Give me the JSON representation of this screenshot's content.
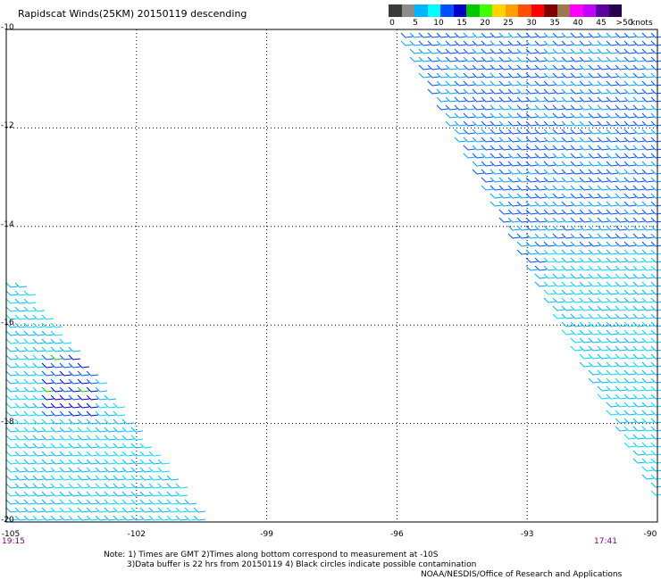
{
  "title": "Rapidscat Winds(25KM) 20150119 descending",
  "colorbar": {
    "colors": [
      "#3a3a3a",
      "#8c8c8c",
      "#00b4ff",
      "#00ffff",
      "#0050ff",
      "#0000c8",
      "#00c800",
      "#40ff00",
      "#ffd200",
      "#ffa000",
      "#ff5000",
      "#ff0000",
      "#800000",
      "#a07850",
      "#ff00ff",
      "#c000ff",
      "#5a00a0",
      "#280050"
    ],
    "labels": [
      "0",
      "5",
      "10",
      "15",
      "20",
      "25",
      "30",
      "35",
      "40",
      "45",
      ">50"
    ],
    "units": "knots"
  },
  "axes": {
    "lat_labels": [
      "-10",
      "-12",
      "-14",
      "-16",
      "-18",
      "-20"
    ],
    "lat_values": [
      -10,
      -12,
      -14,
      -16,
      -18,
      -20
    ],
    "lon_labels": [
      "-105",
      "-102",
      "-99",
      "-96",
      "-93",
      "-90"
    ],
    "lon_values": [
      -105,
      -102,
      -99,
      -96,
      -93,
      -90
    ],
    "lon_range": [
      -105,
      -90
    ],
    "lat_range": [
      -10,
      -20
    ],
    "grid": "dotted"
  },
  "swaths": [
    {
      "name": "east",
      "time": "17:41"
    },
    {
      "name": "west",
      "time": "19:15"
    }
  ],
  "notes": {
    "line1": "Note: 1) Times are GMT 2)Times along bottom correspond to measurement at -10S",
    "line2": "3)Data buffer is 22 hrs from 20150119 4) Black circles indicate possible contamination",
    "line3": "NOAA/NESDIS/Office of Research and Applications"
  }
}
